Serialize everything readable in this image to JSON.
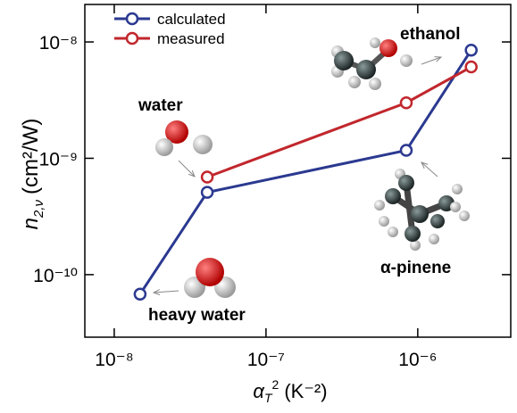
{
  "chart_data": {
    "type": "line",
    "x": [
      1.48e-08,
      4.1e-08,
      8.4e-07,
      2.25e-06
    ],
    "series": [
      {
        "name": "calculated",
        "color": "#2b3990",
        "values": [
          6.8e-11,
          5.1e-10,
          1.17e-09,
          8.5e-09
        ]
      },
      {
        "name": "measured",
        "color": "#c1272d",
        "values": [
          null,
          6.9e-10,
          3e-09,
          6.1e-09
        ]
      }
    ],
    "log_x": true,
    "log_y": true,
    "xlim": [
      6.4e-09,
      4.1e-06
    ],
    "ylim": [
      2.9e-11,
      2.1e-08
    ],
    "xticks": [
      {
        "value": 1e-08,
        "label": "10⁻⁸"
      },
      {
        "value": 1e-07,
        "label": "10⁻⁷"
      },
      {
        "value": 1e-06,
        "label": "10⁻⁶"
      }
    ],
    "yticks": [
      {
        "value": 1e-10,
        "label": "10⁻¹⁰"
      },
      {
        "value": 1e-09,
        "label": "10⁻⁹"
      },
      {
        "value": 1e-08,
        "label": "10⁻⁸"
      }
    ],
    "xlabel": {
      "symbol": "α",
      "subscript": "T",
      "superscript": "2",
      "unit": "(K⁻²)"
    },
    "ylabel": {
      "symbol": "n",
      "subscript": "2,ν",
      "unit": "(cm²/W)"
    },
    "legend": "upper left",
    "annotations": [
      "water",
      "ethanol",
      "heavy water",
      "α-pinene"
    ]
  }
}
